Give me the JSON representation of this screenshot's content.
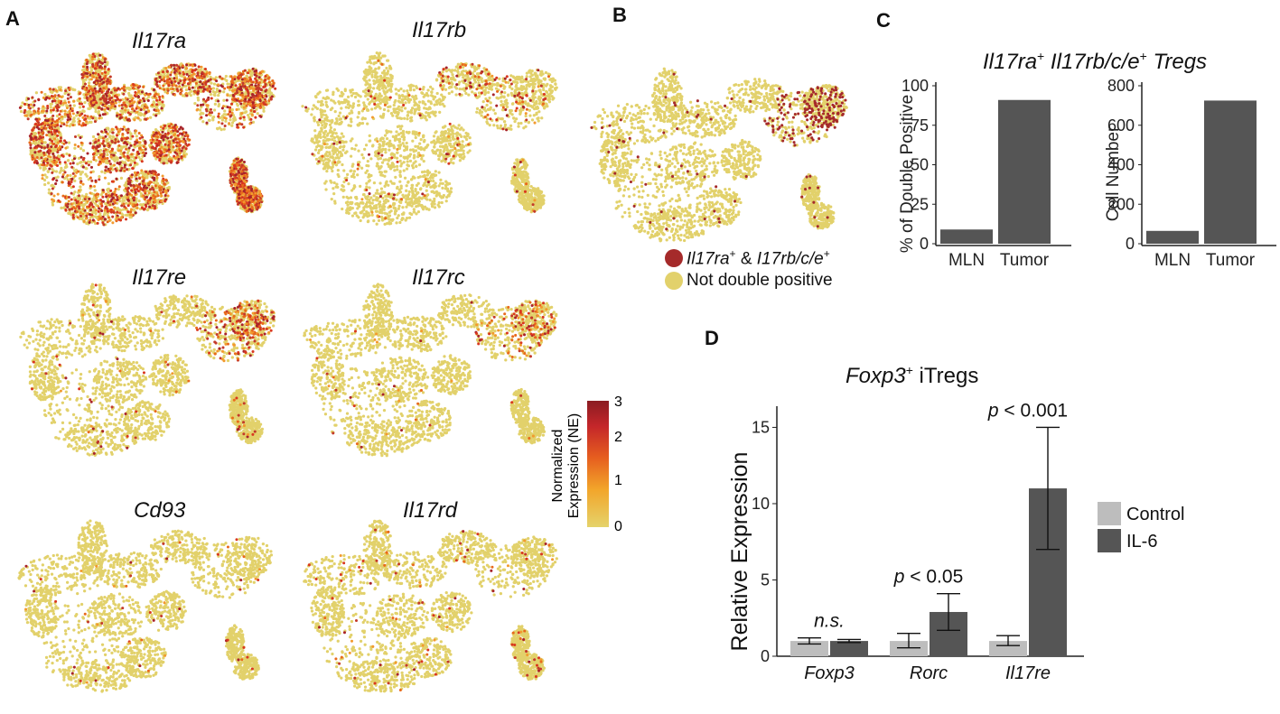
{
  "panels": {
    "a": {
      "label": "A",
      "genes": [
        {
          "name": "Il17ra",
          "density": 0.85,
          "hot": "all"
        },
        {
          "name": "Il17rb",
          "density": 0.07,
          "hot": "topright"
        },
        {
          "name": "Il17re",
          "density": 0.1,
          "hot": "right"
        },
        {
          "name": "Il17rc",
          "density": 0.06,
          "hot": "right"
        },
        {
          "name": "Cd93",
          "density": 0.02,
          "hot": "none"
        },
        {
          "name": "Il17rd",
          "density": 0.04,
          "hot": "none"
        }
      ],
      "colorbar": {
        "title_line1": "Normalized",
        "title_line2": "Expression (NE)",
        "ticks": [
          "3",
          "2",
          "1",
          "0"
        ],
        "min": 0,
        "max": 3,
        "colors": [
          "#e5d36b",
          "#f2a52a",
          "#e65e1f",
          "#c4262a",
          "#8b1c22"
        ]
      }
    },
    "b": {
      "label": "B",
      "legend": [
        {
          "gene": "Il17ra",
          "sup1": "+",
          "join": " & ",
          "gene2": "I17rb/c/e",
          "sup2": "+",
          "color": "#a52a2a"
        },
        {
          "text": "Not double positive",
          "color": "#e2d16b"
        }
      ]
    },
    "c": {
      "label": "C",
      "title_gene1": "Il17ra",
      "title_sup1": "+",
      "title_gene2": " Il17rb/c/e",
      "title_sup2": "+",
      "title_suffix": " Tregs"
    },
    "d": {
      "label": "D",
      "title_gene": "Foxp3",
      "title_sup": "+",
      "title_suffix": " iTregs"
    }
  },
  "chart_data": [
    {
      "type": "bar",
      "title": "Il17ra+ Il17rb/c/e+ Tregs",
      "categories": [
        "MLN",
        "Tumor"
      ],
      "values": [
        9,
        91
      ],
      "ylabel": "% of Double Positive",
      "ylim": [
        0,
        100
      ],
      "yticks": [
        "0",
        "25",
        "50",
        "75",
        "100"
      ],
      "color": "#555555"
    },
    {
      "type": "bar",
      "title": "Il17ra+ Il17rb/c/e+ Tregs",
      "categories": [
        "MLN",
        "Tumor"
      ],
      "values": [
        65,
        725
      ],
      "ylabel": "Cell Number",
      "ylim": [
        0,
        800
      ],
      "yticks": [
        "0",
        "200",
        "400",
        "600",
        "800"
      ],
      "color": "#555555"
    },
    {
      "type": "bar",
      "title": "Foxp3+ iTregs",
      "categories": [
        "Foxp3",
        "Rorc",
        "Il17re"
      ],
      "series": [
        {
          "name": "Control",
          "values": [
            1.0,
            1.0,
            1.0
          ],
          "err_low": [
            0.8,
            0.55,
            0.7
          ],
          "err_high": [
            1.2,
            1.5,
            1.35
          ],
          "color": "#bdbdbd"
        },
        {
          "name": "IL-6",
          "values": [
            1.0,
            2.9,
            11.0
          ],
          "err_low": [
            0.9,
            1.7,
            7.0
          ],
          "err_high": [
            1.1,
            4.1,
            15.0
          ],
          "color": "#555555"
        }
      ],
      "annotations": [
        {
          "category": "Foxp3",
          "text": "n.s.",
          "italic_all": true
        },
        {
          "category": "Rorc",
          "p": "p",
          "text": " < 0.05"
        },
        {
          "category": "Il17re",
          "p": "p",
          "text": " < 0.001"
        }
      ],
      "ylabel": "Relative Expression",
      "ylim": [
        0,
        15.5
      ],
      "yticks": [
        "0",
        "5",
        "10",
        "15"
      ]
    }
  ]
}
